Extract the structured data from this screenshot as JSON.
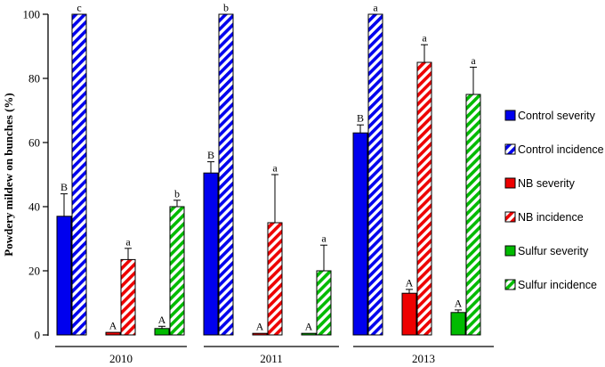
{
  "chart_data": {
    "type": "bar",
    "ylabel": "Powdery mildew on bunches (%)",
    "xlabel": "",
    "ylim": [
      0,
      100
    ],
    "yticks": [
      0,
      20,
      40,
      60,
      80,
      100
    ],
    "grid": false,
    "legend_position": "right",
    "categories": [
      "2010",
      "2011",
      "2013"
    ],
    "series": [
      {
        "name": "Control severity",
        "color": "#0000ee",
        "pattern": "solid",
        "values": [
          37,
          50.5,
          63
        ],
        "errors": [
          7,
          3.5,
          2.5
        ],
        "letters": [
          "B",
          "B",
          "B"
        ]
      },
      {
        "name": "Control incidence",
        "color": "#0000ee",
        "pattern": "hatched",
        "values": [
          100,
          100,
          100
        ],
        "errors": [
          0,
          0,
          0
        ],
        "letters": [
          "c",
          "b",
          "a"
        ]
      },
      {
        "name": "NB severity",
        "color": "#ee0000",
        "pattern": "solid",
        "values": [
          0.8,
          0.5,
          13
        ],
        "errors": [
          0,
          0,
          1.2
        ],
        "letters": [
          "A",
          "A",
          "A"
        ]
      },
      {
        "name": "NB incidence",
        "color": "#ee0000",
        "pattern": "hatched",
        "values": [
          23.5,
          35,
          85
        ],
        "errors": [
          3.5,
          15,
          5.5
        ],
        "letters": [
          "a",
          "a",
          "a"
        ]
      },
      {
        "name": "Sulfur severity",
        "color": "#00bb00",
        "pattern": "solid",
        "values": [
          2,
          0.5,
          7
        ],
        "errors": [
          0.7,
          0,
          0.8
        ],
        "letters": [
          "A",
          "A",
          "A"
        ]
      },
      {
        "name": "Sulfur incidence",
        "color": "#00bb00",
        "pattern": "hatched",
        "values": [
          40,
          20,
          75
        ],
        "errors": [
          2,
          8,
          8.5
        ],
        "letters": [
          "b",
          "a",
          "a"
        ]
      }
    ]
  }
}
